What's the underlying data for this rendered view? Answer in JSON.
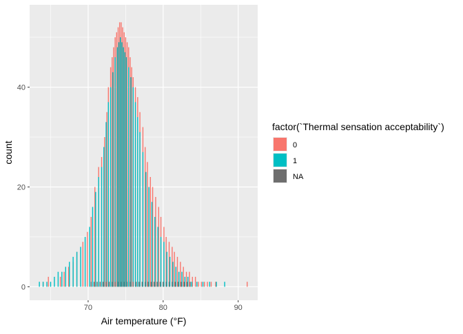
{
  "chart_data": {
    "type": "bar",
    "title": "",
    "xlabel": "Air temperature (°F)",
    "ylabel": "count",
    "xlim": [
      62.2,
      92.6
    ],
    "ylim": [
      -2.7,
      56.5
    ],
    "x_ticks": [
      70,
      80,
      90
    ],
    "y_ticks": [
      0,
      20,
      40
    ],
    "grid": true,
    "panel_color": "#ebebeb",
    "grid_color": "#ffffff",
    "legend": {
      "title": "factor(`Thermal sensation acceptability`)",
      "position": "right",
      "entries": [
        {
          "label": "0",
          "color": "#f8766d"
        },
        {
          "label": "1",
          "color": "#00bfc4"
        },
        {
          "label": "NA",
          "color": "#6e6e6e"
        }
      ]
    },
    "bar_width": 0.13,
    "series": [
      {
        "name": "0",
        "color": "#f8766d",
        "points": [
          [
            64.0,
            1
          ],
          [
            64.7,
            2
          ],
          [
            66.3,
            2
          ],
          [
            66.8,
            3
          ],
          [
            67.4,
            4
          ],
          [
            68.0,
            5
          ],
          [
            68.5,
            7
          ],
          [
            69.3,
            9
          ],
          [
            69.9,
            11
          ],
          [
            70.4,
            14
          ],
          [
            70.9,
            20
          ],
          [
            71.4,
            24
          ],
          [
            71.8,
            26
          ],
          [
            72.2,
            30
          ],
          [
            72.5,
            35
          ],
          [
            72.7,
            40
          ],
          [
            73.0,
            44
          ],
          [
            73.2,
            46
          ],
          [
            73.4,
            48
          ],
          [
            73.6,
            50
          ],
          [
            73.8,
            51
          ],
          [
            74.0,
            52
          ],
          [
            74.2,
            53
          ],
          [
            74.4,
            53
          ],
          [
            74.6,
            52
          ],
          [
            74.8,
            51
          ],
          [
            75.0,
            50
          ],
          [
            75.2,
            49
          ],
          [
            75.4,
            48
          ],
          [
            75.6,
            46
          ],
          [
            75.8,
            44
          ],
          [
            76.0,
            42
          ],
          [
            76.3,
            40
          ],
          [
            76.6,
            38
          ],
          [
            76.9,
            35
          ],
          [
            77.3,
            32
          ],
          [
            77.6,
            28
          ],
          [
            77.9,
            25
          ],
          [
            78.3,
            22
          ],
          [
            78.6,
            20
          ],
          [
            79.0,
            18
          ],
          [
            79.4,
            16
          ],
          [
            79.7,
            14
          ],
          [
            80.1,
            12
          ],
          [
            80.4,
            10
          ],
          [
            80.8,
            9
          ],
          [
            81.2,
            8
          ],
          [
            81.5,
            7
          ],
          [
            81.9,
            6
          ],
          [
            82.3,
            5
          ],
          [
            82.7,
            4
          ],
          [
            83.1,
            3
          ],
          [
            83.5,
            3
          ],
          [
            83.9,
            2
          ],
          [
            84.3,
            2
          ],
          [
            84.7,
            1
          ],
          [
            85.1,
            1
          ],
          [
            85.5,
            1
          ],
          [
            85.9,
            1
          ],
          [
            86.4,
            1
          ],
          [
            87.0,
            1
          ],
          [
            91.2,
            1
          ]
        ]
      },
      {
        "name": "1",
        "color": "#00bfc4",
        "points": [
          [
            63.5,
            1
          ],
          [
            64.0,
            1
          ],
          [
            64.5,
            1
          ],
          [
            65.0,
            1
          ],
          [
            65.5,
            2
          ],
          [
            66.0,
            3
          ],
          [
            66.5,
            3
          ],
          [
            67.0,
            4
          ],
          [
            67.5,
            5
          ],
          [
            68.0,
            6
          ],
          [
            68.5,
            7
          ],
          [
            69.0,
            8
          ],
          [
            69.6,
            10
          ],
          [
            70.2,
            12
          ],
          [
            70.6,
            16
          ],
          [
            71.0,
            19
          ],
          [
            71.4,
            22
          ],
          [
            71.8,
            24
          ],
          [
            72.1,
            28
          ],
          [
            72.4,
            33
          ],
          [
            72.7,
            37
          ],
          [
            73.0,
            40
          ],
          [
            73.3,
            43
          ],
          [
            73.6,
            46
          ],
          [
            73.9,
            48
          ],
          [
            74.1,
            49
          ],
          [
            74.3,
            50
          ],
          [
            74.5,
            49
          ],
          [
            74.7,
            48
          ],
          [
            74.9,
            47
          ],
          [
            75.1,
            46
          ],
          [
            75.4,
            44
          ],
          [
            75.7,
            42
          ],
          [
            76.0,
            40
          ],
          [
            76.3,
            37
          ],
          [
            76.6,
            34
          ],
          [
            76.9,
            31
          ],
          [
            77.3,
            27
          ],
          [
            77.7,
            23
          ],
          [
            78.1,
            20
          ],
          [
            78.5,
            17
          ],
          [
            78.9,
            14
          ],
          [
            79.3,
            12
          ],
          [
            79.7,
            10
          ],
          [
            80.1,
            9
          ],
          [
            80.5,
            7
          ],
          [
            80.9,
            6
          ],
          [
            81.3,
            5
          ],
          [
            81.7,
            4
          ],
          [
            82.1,
            3
          ],
          [
            82.5,
            3
          ],
          [
            82.9,
            2
          ],
          [
            83.3,
            2
          ],
          [
            83.8,
            1
          ],
          [
            84.5,
            1
          ],
          [
            85.3,
            1
          ],
          [
            86.2,
            1
          ],
          [
            87.1,
            1
          ],
          [
            88.2,
            1
          ]
        ]
      },
      {
        "name": "NA",
        "color": "#6e6e6e",
        "points": [
          [
            70.4,
            1
          ],
          [
            70.8,
            1
          ],
          [
            71.2,
            1
          ],
          [
            71.6,
            1
          ],
          [
            72.0,
            1
          ],
          [
            72.4,
            1
          ],
          [
            72.8,
            1
          ],
          [
            73.2,
            1
          ],
          [
            73.6,
            1
          ],
          [
            74.0,
            1
          ],
          [
            74.4,
            1
          ],
          [
            74.8,
            1
          ],
          [
            75.2,
            1
          ],
          [
            75.6,
            1
          ],
          [
            76.0,
            1
          ],
          [
            76.4,
            1
          ],
          [
            76.8,
            1
          ],
          [
            77.2,
            1
          ],
          [
            77.6,
            1
          ],
          [
            78.0,
            1
          ],
          [
            78.4,
            1
          ],
          [
            78.8,
            1
          ],
          [
            79.2,
            1
          ],
          [
            79.6,
            1
          ],
          [
            80.0,
            1
          ],
          [
            80.4,
            1
          ],
          [
            80.8,
            1
          ],
          [
            81.2,
            1
          ],
          [
            81.6,
            1
          ],
          [
            82.0,
            1
          ],
          [
            82.4,
            1
          ],
          [
            82.8,
            1
          ],
          [
            83.2,
            1
          ],
          [
            83.6,
            1
          ]
        ]
      }
    ]
  }
}
